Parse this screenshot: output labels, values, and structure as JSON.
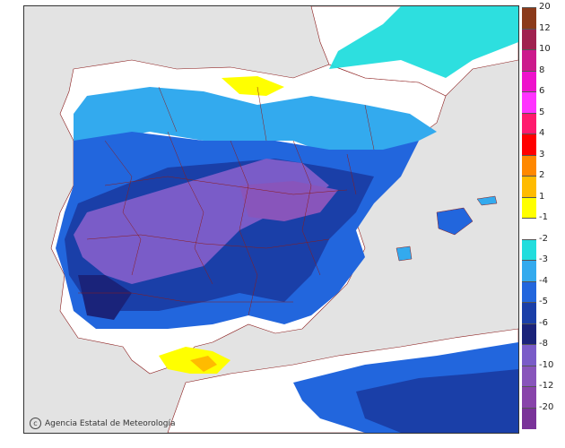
{
  "credit": {
    "logo_icon": "aemet-logo-icon",
    "text": "Agencia Estatal de Meteorología"
  },
  "legend": {
    "labels": [
      "20",
      "12",
      "10",
      "8",
      "6",
      "5",
      "4",
      "3",
      "2",
      "1",
      "-1",
      "-2",
      "-3",
      "-4",
      "-5",
      "-6",
      "-8",
      "-10",
      "-12",
      "-20"
    ],
    "colors": [
      "#8b3a1a",
      "#a0224f",
      "#cc1a8c",
      "#ee11cc",
      "#ff33ff",
      "#ff1a6e",
      "#ff0000",
      "#ff8800",
      "#ffbb00",
      "#ffff00",
      "#ffffff",
      "#22dddd",
      "#33aaee",
      "#2266dd",
      "#1a3fa8",
      "#1a237a",
      "#7a5cc8",
      "#8855bb",
      "#8844aa",
      "#7a3399"
    ]
  },
  "colors": {
    "background": "#e3e3e3",
    "land_white": "#ffffff",
    "borders": "#8b1c1c"
  }
}
